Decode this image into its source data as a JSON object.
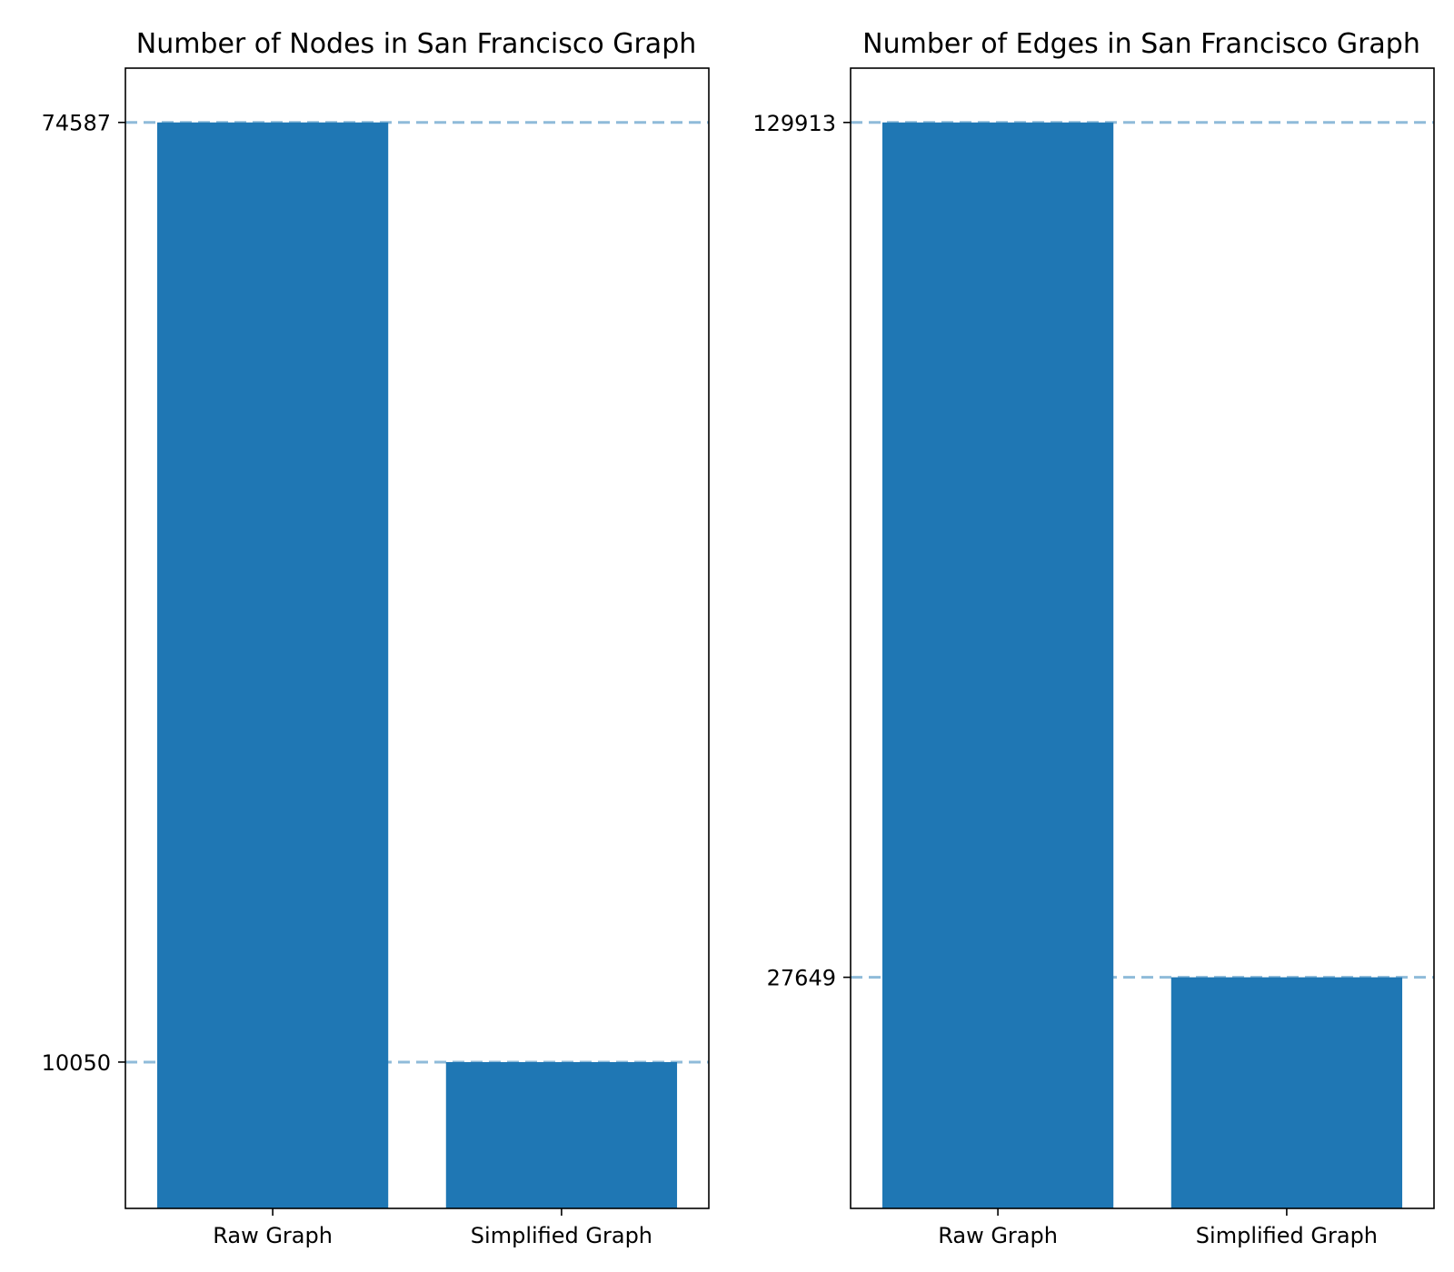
{
  "chart_data": [
    {
      "type": "bar",
      "title": "Number of Nodes in San Francisco Graph",
      "categories": [
        "Raw Graph",
        "Simplified Graph"
      ],
      "values": [
        74587,
        10050
      ],
      "yticks": [
        "74587",
        "10050"
      ],
      "ylim": [
        0,
        78315
      ],
      "xlabel": "",
      "ylabel": "",
      "grid": false,
      "reference_lines": "dashed at each bar value",
      "bar_color": "#1f77b4"
    },
    {
      "type": "bar",
      "title": "Number of Edges in San Francisco Graph",
      "categories": [
        "Raw Graph",
        "Simplified Graph"
      ],
      "values": [
        129913,
        27649
      ],
      "yticks": [
        "129913",
        "27649"
      ],
      "ylim": [
        0,
        136409
      ],
      "xlabel": "",
      "ylabel": "",
      "grid": false,
      "reference_lines": "dashed at each bar value",
      "bar_color": "#1f77b4"
    }
  ]
}
